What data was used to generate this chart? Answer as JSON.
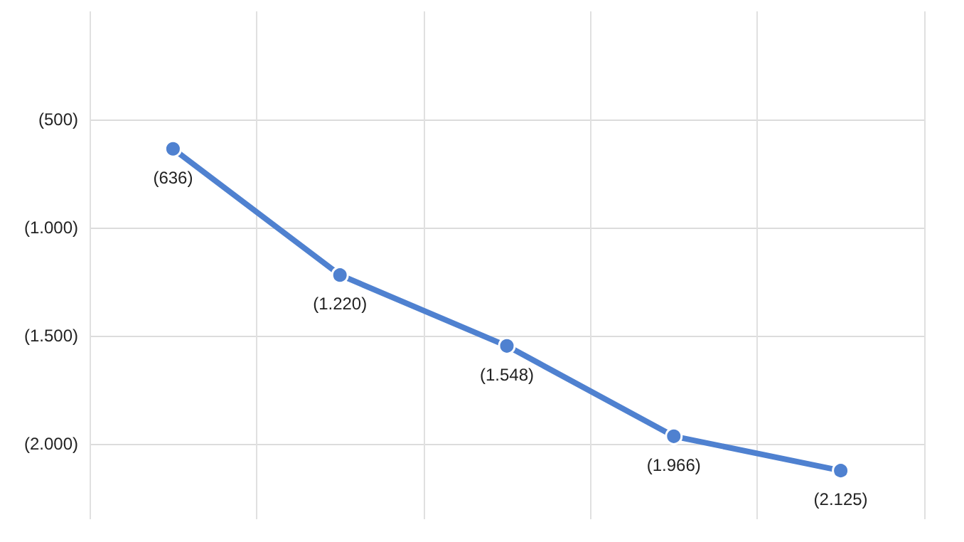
{
  "chart_data": {
    "type": "line",
    "categories": [
      null,
      null,
      null,
      null,
      null
    ],
    "series": [
      {
        "color": "#4f81d0",
        "values": [
          -636,
          -1220,
          -1548,
          -1966,
          -2125
        ],
        "value_labels": [
          "(636)",
          "(1.220)",
          "(1.548)",
          "(1.966)",
          "(2.125)"
        ]
      }
    ],
    "ylim": [
      -2350,
      0
    ],
    "yticks": [
      {
        "value": -2000,
        "label": "(2.000)"
      },
      {
        "value": -1500,
        "label": "(1.500)"
      },
      {
        "value": -1000,
        "label": "(1.000)"
      },
      {
        "value": -500,
        "label": "(500)"
      }
    ],
    "grid": true,
    "marker": "circle",
    "line_style": "solid"
  }
}
